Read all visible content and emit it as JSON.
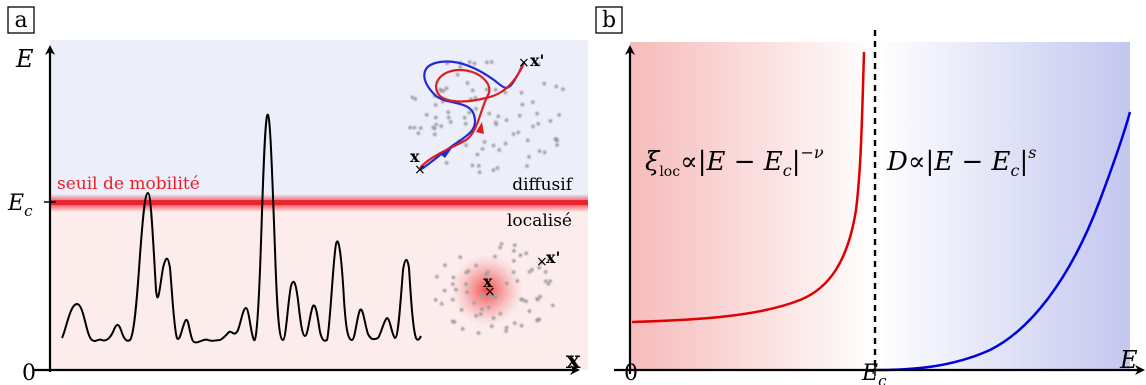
{
  "panel_a": {
    "label": "a",
    "y_axis_label": "E",
    "x_axis_label": "x",
    "tick_ec": "E",
    "tick_ec_sub": "c",
    "tick_zero": "0",
    "mobility_edge_label": "seuil de mobilité",
    "region_upper": "diffusif",
    "region_lower": "localisé",
    "inset_upper": {
      "start": "x",
      "end": "x'"
    },
    "inset_lower": {
      "start": "x",
      "end": "x'"
    },
    "colors": {
      "upper_region": "#eceef9",
      "lower_region": "#fcecec",
      "mobility_edge": "#e8202a",
      "path_red": "#dd1e1e",
      "path_blue": "#1f2bd8"
    }
  },
  "panel_b": {
    "label": "b",
    "x_axis_label": "E",
    "tick_zero": "0",
    "tick_ec": "E",
    "tick_ec_sub": "c",
    "formula_left": {
      "sym": "ξ",
      "sub": "loc",
      "prop": "∝",
      "body": "|E − E",
      "body_sub": "c",
      "body_end": "|",
      "exp": "−ν"
    },
    "formula_right": {
      "sym": "D",
      "prop": "∝",
      "body": "|E − E",
      "body_sub": "c",
      "body_end": "|",
      "exp": "s"
    },
    "colors": {
      "left_curve": "#e00000",
      "right_curve": "#0000dd",
      "left_region": "#f8c4c4",
      "right_region": "#c8ccf0"
    }
  }
}
